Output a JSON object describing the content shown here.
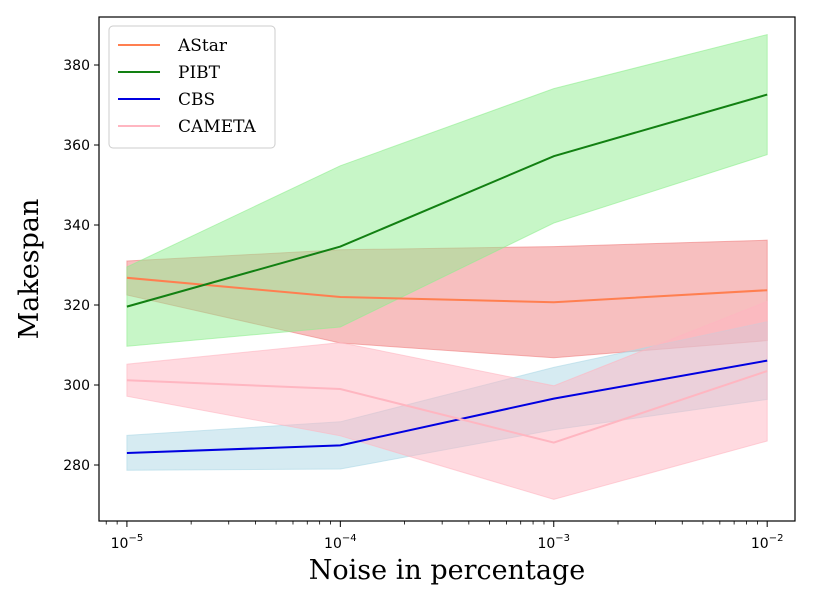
{
  "chart_data": {
    "type": "line",
    "xlabel": "Noise in percentage",
    "ylabel": "Makespan",
    "x": [
      1e-05,
      0.0001,
      0.001,
      0.01
    ],
    "x_scale": "log",
    "xlim": [
      7.4e-06,
      0.0135
    ],
    "ylim": [
      266,
      392
    ],
    "x_ticks": [
      {
        "value": 1e-05,
        "base": "10",
        "exp": "−5"
      },
      {
        "value": 0.0001,
        "base": "10",
        "exp": "−4"
      },
      {
        "value": 0.001,
        "base": "10",
        "exp": "−3"
      },
      {
        "value": 0.01,
        "base": "10",
        "exp": "−2"
      }
    ],
    "y_ticks": [
      280,
      300,
      320,
      340,
      360,
      380
    ],
    "grid": false,
    "legend_position": "top-left",
    "series": [
      {
        "name": "AStar",
        "color": "#ff7f50",
        "band_color": "#f08080",
        "values": [
          326.8,
          322.0,
          320.7,
          323.7
        ],
        "lower": [
          322.5,
          310.5,
          306.8,
          311.1
        ],
        "upper": [
          331.0,
          333.8,
          334.6,
          336.2
        ]
      },
      {
        "name": "PIBT",
        "color": "#128012",
        "band_color": "#90ee90",
        "values": [
          319.6,
          334.6,
          357.2,
          372.6
        ],
        "lower": [
          309.7,
          314.5,
          340.5,
          357.6
        ],
        "upper": [
          329.5,
          354.8,
          374.1,
          387.6
        ]
      },
      {
        "name": "CBS",
        "color": "#0000e0",
        "band_color": "#add8e6",
        "values": [
          283.0,
          284.9,
          296.6,
          306.1
        ],
        "lower": [
          278.7,
          279.0,
          288.8,
          296.4
        ],
        "upper": [
          287.4,
          290.8,
          304.4,
          315.8
        ]
      },
      {
        "name": "CAMETA",
        "color": "#ffb6c1",
        "band_color": "#ffb6c1",
        "values": [
          301.2,
          299.0,
          285.6,
          303.5
        ],
        "lower": [
          297.2,
          287.3,
          271.4,
          286.0
        ],
        "upper": [
          305.2,
          310.6,
          299.8,
          320.9
        ]
      }
    ]
  }
}
